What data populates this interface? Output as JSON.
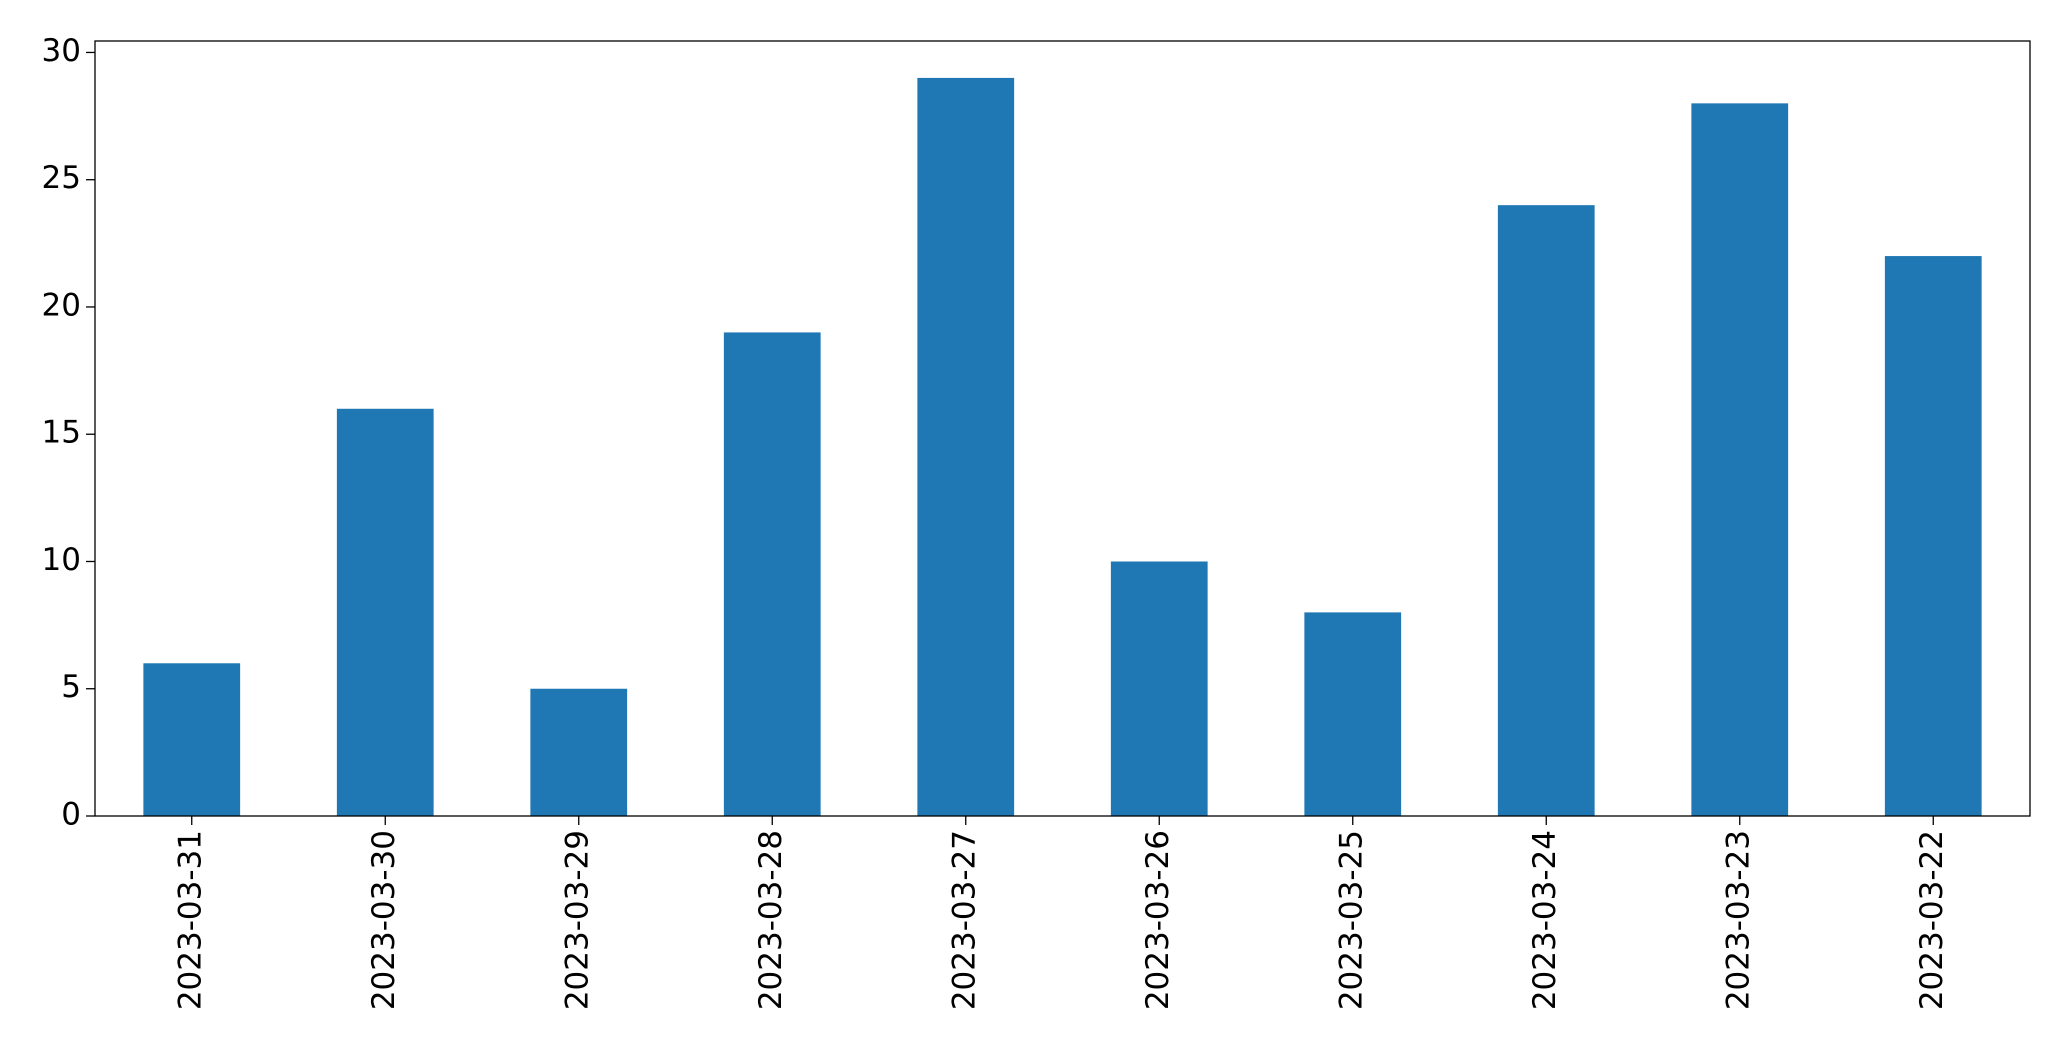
{
  "chart_data": {
    "type": "bar",
    "categories": [
      "2023-03-31",
      "2023-03-30",
      "2023-03-29",
      "2023-03-28",
      "2023-03-27",
      "2023-03-26",
      "2023-03-25",
      "2023-03-24",
      "2023-03-23",
      "2023-03-22"
    ],
    "values": [
      6,
      16,
      5,
      19,
      29,
      10,
      8,
      24,
      28,
      22
    ],
    "color": "#1f77b4",
    "ylim": [
      0,
      30.45
    ],
    "yticks": [
      0,
      5,
      10,
      15,
      20,
      25,
      30
    ],
    "grid": false
  }
}
